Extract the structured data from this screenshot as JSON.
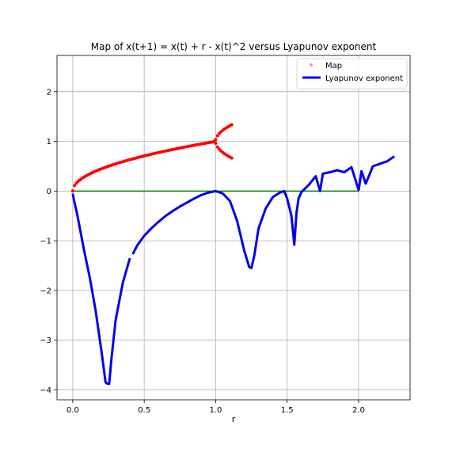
{
  "colors": {
    "map": "#ff0000",
    "lyapunov": "#0000ee",
    "zero_line": "#008000",
    "grid": "#b0b0b0"
  },
  "chart_data": {
    "type": "scatter",
    "title": "Map of x(t+1) = x(t) + r - x(t)^2 versus Lyapunov exponent",
    "xlabel": "r",
    "ylabel": "",
    "xlim": [
      -0.11,
      2.36
    ],
    "ylim": [
      -4.2,
      2.73
    ],
    "xticks": [
      0.0,
      0.5,
      1.0,
      1.5,
      2.0
    ],
    "xtick_labels": [
      "0.0",
      "0.5",
      "1.0",
      "1.5",
      "2.0"
    ],
    "yticks": [
      -4,
      -3,
      -2,
      -1,
      0,
      1,
      2
    ],
    "ytick_labels": [
      "−4",
      "−3",
      "−2",
      "−1",
      "0",
      "1",
      "2"
    ],
    "grid": true,
    "legend_position": "top-right",
    "series": [
      {
        "name": "Map",
        "kind": "scatter",
        "color": "#ff0000",
        "r_range": [
          0.0,
          1.12
        ],
        "note": "attractor points of the map x(t+1) = x(t) + r - x(t)^2 for each r"
      },
      {
        "name": "Lyapunov exponent",
        "kind": "line",
        "color": "#0000ee",
        "x": [
          0.0,
          0.01,
          0.03,
          0.05,
          0.08,
          0.12,
          0.16,
          0.2,
          0.23,
          0.245,
          0.255,
          0.27,
          0.3,
          0.35,
          0.4,
          0.42,
          0.45,
          0.5,
          0.55,
          0.6,
          0.65,
          0.7,
          0.75,
          0.8,
          0.85,
          0.9,
          0.95,
          1.0,
          1.05,
          1.1,
          1.15,
          1.2,
          1.235,
          1.25,
          1.27,
          1.3,
          1.35,
          1.4,
          1.45,
          1.48,
          1.5,
          1.53,
          1.55,
          1.565,
          1.58,
          1.6,
          1.65,
          1.7,
          1.73,
          1.75,
          1.8,
          1.85,
          1.9,
          1.95,
          2.0,
          2.02,
          2.05,
          2.1,
          2.15,
          2.2,
          2.25
        ],
        "y": [
          -0.05,
          -0.2,
          -0.45,
          -0.75,
          -1.2,
          -1.75,
          -2.4,
          -3.2,
          -3.85,
          -3.88,
          -3.88,
          -3.4,
          -2.6,
          -1.85,
          -1.35,
          -1.27,
          -1.1,
          -0.9,
          -0.75,
          -0.62,
          -0.5,
          -0.4,
          -0.31,
          -0.23,
          -0.15,
          -0.08,
          -0.03,
          0.0,
          -0.05,
          -0.2,
          -0.6,
          -1.2,
          -1.53,
          -1.55,
          -1.3,
          -0.75,
          -0.35,
          -0.12,
          -0.03,
          0.0,
          -0.15,
          -0.5,
          -1.08,
          -0.45,
          -0.15,
          -0.02,
          0.12,
          0.3,
          0.0,
          0.35,
          0.38,
          0.42,
          0.38,
          0.48,
          0.02,
          0.4,
          0.15,
          0.5,
          0.55,
          0.6,
          0.7
        ]
      },
      {
        "name": "",
        "kind": "line",
        "color": "#008000",
        "x": [
          0.0,
          2.0
        ],
        "y": [
          0.0,
          0.0
        ]
      }
    ]
  }
}
